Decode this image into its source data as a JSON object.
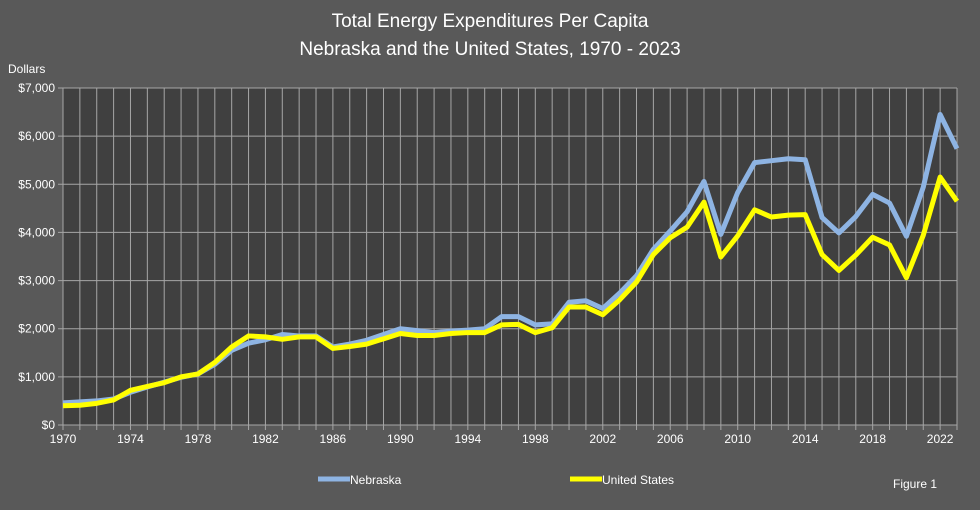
{
  "chart_data": {
    "type": "line",
    "title": [
      "Total Energy Expenditures Per Capita",
      "Nebraska and the United States, 1970 - 2023"
    ],
    "ylabel": "Dollars",
    "xlabel": "",
    "footnote": "Figure 1",
    "xlim": [
      1970,
      2023
    ],
    "ylim": [
      0,
      7000
    ],
    "grid": true,
    "legend_position": "bottom",
    "x_ticks": [
      1970,
      1974,
      1978,
      1982,
      1986,
      1990,
      1994,
      1998,
      2002,
      2006,
      2010,
      2014,
      2018,
      2022
    ],
    "y_ticks": [
      0,
      1000,
      2000,
      3000,
      4000,
      5000,
      6000,
      7000
    ],
    "y_tick_labels": [
      "$0",
      "$1,000",
      "$2,000",
      "$3,000",
      "$4,000",
      "$5,000",
      "$6,000",
      "$7,000"
    ],
    "x": [
      1970,
      1971,
      1972,
      1973,
      1974,
      1975,
      1976,
      1977,
      1978,
      1979,
      1980,
      1981,
      1982,
      1983,
      1984,
      1985,
      1986,
      1987,
      1988,
      1989,
      1990,
      1991,
      1992,
      1993,
      1994,
      1995,
      1996,
      1997,
      1998,
      1999,
      2000,
      2001,
      2002,
      2003,
      2004,
      2005,
      2006,
      2007,
      2008,
      2009,
      2010,
      2011,
      2012,
      2013,
      2014,
      2015,
      2016,
      2017,
      2018,
      2019,
      2020,
      2021,
      2022,
      2023
    ],
    "series": [
      {
        "name": "Nebraska",
        "color": "#8eb4e3",
        "values": [
          460,
          480,
          500,
          540,
          680,
          790,
          890,
          990,
          1060,
          1260,
          1550,
          1700,
          1770,
          1880,
          1850,
          1850,
          1620,
          1680,
          1760,
          1880,
          2000,
          1960,
          1920,
          1950,
          1970,
          2000,
          2250,
          2250,
          2080,
          2100,
          2550,
          2580,
          2420,
          2740,
          3100,
          3650,
          4030,
          4430,
          5060,
          3960,
          4830,
          5450,
          5490,
          5530,
          5510,
          4310,
          3990,
          4330,
          4790,
          4610,
          3920,
          4940,
          6450,
          5740
        ]
      },
      {
        "name": "United States",
        "color": "#ffff00",
        "values": [
          400,
          410,
          450,
          520,
          720,
          800,
          880,
          1000,
          1060,
          1300,
          1620,
          1850,
          1830,
          1780,
          1830,
          1830,
          1590,
          1630,
          1680,
          1790,
          1900,
          1860,
          1860,
          1900,
          1920,
          1920,
          2080,
          2090,
          1920,
          2020,
          2450,
          2450,
          2290,
          2600,
          2970,
          3540,
          3890,
          4110,
          4630,
          3490,
          3930,
          4470,
          4320,
          4360,
          4370,
          3540,
          3210,
          3530,
          3900,
          3740,
          3060,
          3940,
          5150,
          4650
        ]
      }
    ]
  }
}
